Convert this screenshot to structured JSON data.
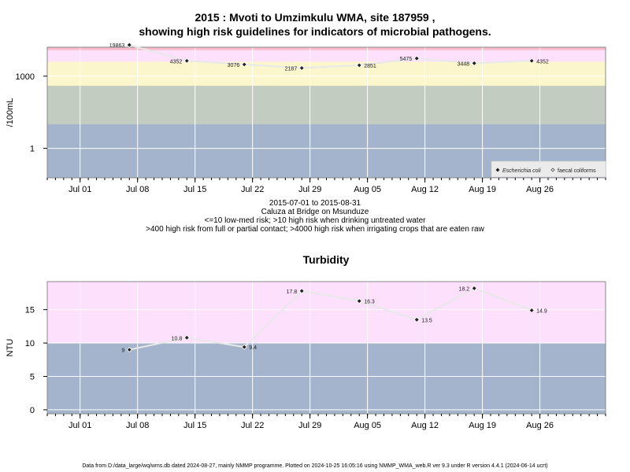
{
  "header": {
    "title_line1": "2015 : Mvoti to Umzimkulu WMA, site 187959 ,",
    "title_line2": "showing high risk guidelines for indicators of microbial pathogens."
  },
  "captions": {
    "date_range": "2015-07-01 to 2015-08-31",
    "site_name": "Caluza at Bridge on Msunduze",
    "guideline_1": "<=10 low-med risk; >10 high risk when drinking untreated water",
    "guideline_2": ">400 high risk from full or partial contact; >4000 high risk when irrigating crops that are eaten raw"
  },
  "footer": {
    "text": "Data from D:/data_large/wq/wms.db dated 2024-08-27, mainly NMMP programme. Plotted on 2024-10-25 16:05:16 using NMMP_WMA_web.R ver 9.3 under R version 4.4.1 (2024-06-14 ucrt)"
  },
  "chart_data": [
    {
      "type": "line",
      "title": "",
      "ylabel": "/100mL",
      "y_scale": "log10",
      "x_tick_labels": [
        "Jul 01",
        "Jul 08",
        "Jul 15",
        "Jul 22",
        "Jul 29",
        "Aug 05",
        "Aug 12",
        "Aug 19",
        "Aug 26"
      ],
      "x_tick_dates": [
        "2015-07-01",
        "2015-07-08",
        "2015-07-15",
        "2015-07-22",
        "2015-07-29",
        "2015-08-05",
        "2015-08-12",
        "2015-08-19",
        "2015-08-26"
      ],
      "xlim": [
        "2015-06-27",
        "2015-09-03"
      ],
      "y_tick_labels": [
        "1",
        "1000"
      ],
      "y_tick_values": [
        1,
        1000
      ],
      "ylim": [
        0.06,
        16000
      ],
      "bands": [
        {
          "from": 0.06,
          "to": 10,
          "color": "#a4b4cc"
        },
        {
          "from": 10,
          "to": 400,
          "color": "#c3ccc0"
        },
        {
          "from": 400,
          "to": 4000,
          "color": "#fcf6cc"
        },
        {
          "from": 4000,
          "to": 12000,
          "color": "#fce0fc"
        },
        {
          "from": 12000,
          "to": 16000,
          "color": "#f8bccc"
        }
      ],
      "series": [
        {
          "name": "Escherichia coli",
          "x": [
            "2015-07-07",
            "2015-07-14",
            "2015-07-21",
            "2015-07-28",
            "2015-08-04",
            "2015-08-11",
            "2015-08-18",
            "2015-08-25"
          ],
          "y": [
            19863,
            4352,
            3076,
            2187,
            2851,
            5475,
            3448,
            4352
          ],
          "labels": [
            "19863",
            "4352",
            "3076",
            "2187",
            "2851",
            "5475",
            "3448",
            "4352"
          ],
          "label_side": [
            "left",
            "left",
            "left",
            "left",
            "right",
            "left",
            "left",
            "right"
          ]
        }
      ],
      "legend": {
        "placement": "bottom-right",
        "entries": [
          {
            "label": "Escherichia coli",
            "marker": "filled-diamond",
            "italic": true
          },
          {
            "label": "faecal coliforms",
            "marker": "open-diamond",
            "italic": false
          }
        ]
      },
      "grid": true
    },
    {
      "type": "line",
      "title": "Turbidity",
      "ylabel": "NTU",
      "y_scale": "linear",
      "x_tick_labels": [
        "Jul 01",
        "Jul 08",
        "Jul 15",
        "Jul 22",
        "Jul 29",
        "Aug 05",
        "Aug 12",
        "Aug 19",
        "Aug 26"
      ],
      "x_tick_dates": [
        "2015-07-01",
        "2015-07-08",
        "2015-07-15",
        "2015-07-22",
        "2015-07-29",
        "2015-08-05",
        "2015-08-12",
        "2015-08-19",
        "2015-08-26"
      ],
      "xlim": [
        "2015-06-27",
        "2015-09-03"
      ],
      "y_tick_labels": [
        "0",
        "5",
        "10",
        "15"
      ],
      "y_tick_values": [
        0,
        5,
        10,
        15
      ],
      "ylim": [
        -0.6,
        19.2
      ],
      "bands": [
        {
          "from": -0.6,
          "to": 10,
          "color": "#a4b4cc"
        },
        {
          "from": 10,
          "to": 19.2,
          "color": "#fce0fc"
        }
      ],
      "series": [
        {
          "name": "",
          "x": [
            "2015-07-07",
            "2015-07-14",
            "2015-07-21",
            "2015-07-28",
            "2015-08-04",
            "2015-08-11",
            "2015-08-18",
            "2015-08-25"
          ],
          "y": [
            9,
            10.8,
            9.4,
            17.8,
            16.3,
            13.5,
            18.2,
            14.9
          ],
          "labels": [
            "9",
            "10.8",
            "9.4",
            "17.8",
            "16.3",
            "13.5",
            "18.2",
            "14.9"
          ],
          "label_side": [
            "left",
            "left",
            "right",
            "left",
            "right",
            "right",
            "left",
            "right"
          ]
        }
      ],
      "grid": true
    }
  ]
}
